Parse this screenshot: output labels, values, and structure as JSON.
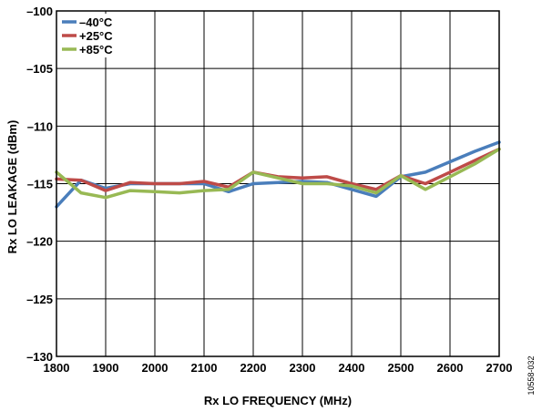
{
  "chart_data": {
    "type": "line",
    "xlabel": "Rx LO FREQUENCY (MHz)",
    "ylabel": "Rx LO LEAKAGE (dBm)",
    "xlim": [
      1800,
      2700
    ],
    "ylim": [
      -130,
      -100
    ],
    "xticks": [
      1800,
      1900,
      2000,
      2100,
      2200,
      2300,
      2400,
      2500,
      2600,
      2700
    ],
    "yticks": [
      -100,
      -105,
      -110,
      -115,
      -120,
      -125,
      -130
    ],
    "xtick_labels": [
      "1800",
      "1900",
      "2000",
      "2100",
      "2200",
      "2300",
      "2400",
      "2500",
      "2600",
      "2700"
    ],
    "ytick_labels": [
      "–100",
      "–105",
      "–110",
      "–115",
      "–120",
      "–125",
      "–130"
    ],
    "grid": true,
    "legend_position": "top-left",
    "x": [
      1800,
      1850,
      1900,
      1950,
      2000,
      2050,
      2100,
      2150,
      2200,
      2250,
      2300,
      2350,
      2400,
      2450,
      2500,
      2550,
      2600,
      2650,
      2700
    ],
    "series": [
      {
        "name": "–40°C",
        "color": "#4a7ebb",
        "values": [
          -117.0,
          -114.7,
          -115.4,
          -115.0,
          -115.0,
          -115.0,
          -115.0,
          -115.7,
          -115.0,
          -114.9,
          -114.8,
          -114.9,
          -115.5,
          -116.1,
          -114.4,
          -114.0,
          -113.1,
          -112.2,
          -111.4
        ]
      },
      {
        "name": "+25°C",
        "color": "#be4b48",
        "values": [
          -114.6,
          -114.7,
          -115.6,
          -114.9,
          -115.0,
          -115.0,
          -114.8,
          -115.3,
          -114.0,
          -114.4,
          -114.5,
          -114.4,
          -115.0,
          -115.5,
          -114.3,
          -115.0,
          -114.0,
          -113.0,
          -112.0
        ]
      },
      {
        "name": "+85°C",
        "color": "#98b954",
        "values": [
          -114.0,
          -115.8,
          -116.2,
          -115.6,
          -115.7,
          -115.8,
          -115.6,
          -115.5,
          -114.0,
          -114.5,
          -115.0,
          -115.0,
          -115.2,
          -115.8,
          -114.3,
          -115.5,
          -114.4,
          -113.3,
          -112.0
        ]
      }
    ]
  },
  "figure_id": "10558-032"
}
